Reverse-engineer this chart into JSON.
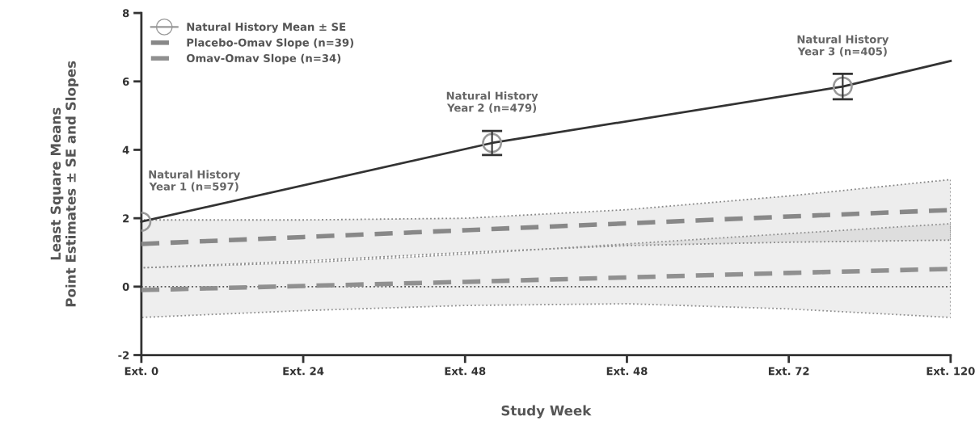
{
  "chart_data": {
    "type": "line",
    "xlabel": "Study Week",
    "ylabel": "Least Square Means\nPoint Estimates ± SE and Slopes",
    "categories": [
      "Ext. 0",
      null,
      null,
      null,
      null,
      null,
      "Ext. 24",
      null,
      null,
      null,
      null,
      null,
      "Ext. 48",
      null,
      null,
      null,
      null,
      null,
      "Ext. 48",
      null,
      null,
      null,
      null,
      null,
      "Ext. 72",
      null,
      null,
      null,
      null,
      null,
      "Ext. 120"
    ],
    "ylim": [
      -2,
      8
    ],
    "yticks": [
      -2,
      0,
      2,
      4,
      6,
      8
    ],
    "grid": false,
    "legend": "top left",
    "series": [
      {
        "color": "#333333",
        "marker": "none",
        "line_style": "solid",
        "values": [
          1.9,
          null,
          null,
          null,
          null,
          null,
          null,
          null,
          null,
          null,
          null,
          null,
          null,
          4.2,
          null,
          null,
          null,
          null,
          null,
          null,
          null,
          null,
          null,
          null,
          null,
          null,
          5.85,
          null,
          null,
          null,
          6.6
        ]
      },
      {
        "type": "scatter",
        "name": "Natural History Mean ± SE",
        "color": "#999999",
        "marker": "circle",
        "values": [
          1.9,
          null,
          null,
          null,
          null,
          null,
          null,
          null,
          null,
          null,
          null,
          null,
          null,
          4.2,
          null,
          null,
          null,
          null,
          null,
          null,
          null,
          null,
          null,
          null,
          null,
          null,
          5.85,
          null,
          null,
          null,
          null
        ],
        "errors": [
          null,
          null,
          null,
          null,
          null,
          null,
          null,
          null,
          null,
          null,
          null,
          null,
          null,
          0.35,
          null,
          null,
          null,
          null,
          null,
          null,
          null,
          null,
          null,
          null,
          null,
          null,
          0.37,
          null,
          null,
          null,
          null
        ]
      },
      {
        "name": "Placebo-Omav Slope (n=39)",
        "color": "#888888",
        "marker": "none",
        "line_style": "dashed",
        "values": [
          1.25,
          null,
          null,
          null,
          null,
          null,
          1.45,
          null,
          null,
          null,
          null,
          null,
          1.65,
          null,
          null,
          null,
          null,
          null,
          1.85,
          null,
          null,
          null,
          null,
          null,
          2.05,
          null,
          null,
          null,
          null,
          null,
          2.24
        ],
        "lower": [
          0.55,
          null,
          null,
          null,
          null,
          null,
          0.75,
          null,
          null,
          null,
          null,
          null,
          1.0,
          null,
          null,
          null,
          null,
          null,
          1.2,
          null,
          null,
          null,
          null,
          null,
          1.3,
          null,
          null,
          null,
          null,
          null,
          1.36
        ],
        "upper": [
          1.95,
          null,
          null,
          null,
          null,
          null,
          1.95,
          null,
          null,
          null,
          null,
          null,
          2.0,
          null,
          null,
          null,
          null,
          null,
          2.25,
          null,
          null,
          null,
          null,
          null,
          2.65,
          null,
          null,
          null,
          null,
          null,
          3.13
        ]
      },
      {
        "name": "Omav-Omav Slope (n=34)",
        "color": "#909090",
        "marker": "none",
        "line_style": "dashed",
        "values": [
          -0.1,
          null,
          null,
          null,
          null,
          null,
          0.02,
          null,
          null,
          null,
          null,
          null,
          0.14,
          null,
          null,
          null,
          null,
          null,
          0.27,
          null,
          null,
          null,
          null,
          null,
          0.4,
          null,
          null,
          null,
          null,
          null,
          0.52
        ],
        "lower": [
          -0.9,
          null,
          null,
          null,
          null,
          null,
          -0.7,
          null,
          null,
          null,
          null,
          null,
          -0.55,
          null,
          null,
          null,
          null,
          null,
          -0.5,
          null,
          null,
          null,
          null,
          null,
          -0.65,
          null,
          null,
          null,
          null,
          null,
          -0.9
        ],
        "upper": [
          0.55,
          null,
          null,
          null,
          null,
          null,
          0.7,
          null,
          null,
          null,
          null,
          null,
          0.95,
          null,
          null,
          null,
          null,
          null,
          1.25,
          null,
          null,
          null,
          null,
          null,
          1.55,
          null,
          null,
          null,
          null,
          null,
          1.84
        ]
      }
    ],
    "ref_lines": [
      {
        "axis": "y",
        "value": 0,
        "color": "#555555",
        "line_style": "dotted"
      }
    ],
    "annotations": [
      {
        "text": "Natural History\nYear 1 (n=597)",
        "y": 1.9
      },
      {
        "text": "Natural History\nYear 2 (n=479)",
        "y": 4.2
      },
      {
        "text": "Natural History\nYear 3 (n=405)",
        "y": 5.85
      }
    ]
  }
}
